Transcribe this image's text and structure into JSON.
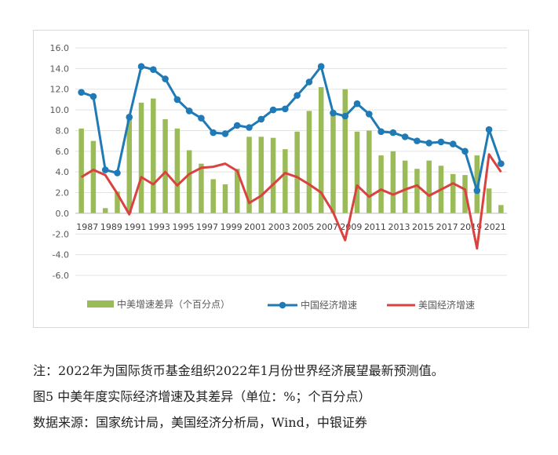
{
  "chart_data": {
    "type": "bar+line",
    "x": [
      1987,
      1988,
      1989,
      1990,
      1991,
      1992,
      1993,
      1994,
      1995,
      1996,
      1997,
      1998,
      1999,
      2000,
      2001,
      2002,
      2003,
      2004,
      2005,
      2006,
      2007,
      2008,
      2009,
      2010,
      2011,
      2012,
      2013,
      2014,
      2015,
      2016,
      2017,
      2018,
      2019,
      2020,
      2021,
      2022
    ],
    "x_tick_labels": [
      "1987",
      "1989",
      "1991",
      "1993",
      "1995",
      "1997",
      "1999",
      "2001",
      "2003",
      "2005",
      "2007",
      "2009",
      "2011",
      "2013",
      "2015",
      "2017",
      "2019",
      "2021"
    ],
    "x_tick_years": [
      1987,
      1989,
      1991,
      1993,
      1995,
      1997,
      1999,
      2001,
      2003,
      2005,
      2007,
      2009,
      2011,
      2013,
      2015,
      2017,
      2019,
      2021
    ],
    "series": [
      {
        "name": "中美增速差异（个百分点）",
        "kind": "bar",
        "color": "#9bbb59",
        "values": [
          8.2,
          7.0,
          0.5,
          2.1,
          9.3,
          10.7,
          11.1,
          9.1,
          8.2,
          6.1,
          4.8,
          3.3,
          2.8,
          4.3,
          7.4,
          7.4,
          7.3,
          6.2,
          7.9,
          9.9,
          12.2,
          9.6,
          12.0,
          7.9,
          8.0,
          5.6,
          6.0,
          5.1,
          4.3,
          5.1,
          4.6,
          3.8,
          3.7,
          5.6,
          2.4,
          0.8
        ]
      },
      {
        "name": "中国经济增速",
        "kind": "line",
        "color": "#1f7ab5",
        "values": [
          11.7,
          11.3,
          4.2,
          3.9,
          9.3,
          14.2,
          13.9,
          13.0,
          11.0,
          9.9,
          9.2,
          7.8,
          7.7,
          8.5,
          8.3,
          9.1,
          10.0,
          10.1,
          11.4,
          12.7,
          14.2,
          9.7,
          9.4,
          10.6,
          9.6,
          7.9,
          7.8,
          7.4,
          7.0,
          6.8,
          6.9,
          6.7,
          6.0,
          2.2,
          8.1,
          4.8
        ]
      },
      {
        "name": "美国经济增速",
        "kind": "line",
        "color": "#d9423e",
        "values": [
          3.5,
          4.2,
          3.7,
          1.9,
          -0.1,
          3.5,
          2.8,
          4.0,
          2.7,
          3.8,
          4.4,
          4.5,
          4.8,
          4.1,
          1.0,
          1.7,
          2.8,
          3.9,
          3.5,
          2.8,
          2.0,
          0.1,
          -2.6,
          2.7,
          1.6,
          2.3,
          1.8,
          2.3,
          2.7,
          1.7,
          2.3,
          2.9,
          2.3,
          -3.4,
          5.7,
          4.0
        ]
      }
    ],
    "y_ticks": [
      "16.0",
      "14.0",
      "12.0",
      "10.0",
      "8.0",
      "6.0",
      "4.0",
      "2.0",
      "0.0",
      "-2.0",
      "-4.0",
      "-6.0"
    ],
    "ylim": [
      -6,
      16
    ],
    "grid": true,
    "legend_position": "bottom"
  },
  "notes": {
    "line1": "注：2022年为国际货币基金组织2022年1月份世界经济展望最新预测值。",
    "line2": "图5 中美年度实际经济增速及其差异（单位：%；个百分点）",
    "line3": "数据来源：国家统计局，美国经济分析局，Wind，中银证券"
  }
}
